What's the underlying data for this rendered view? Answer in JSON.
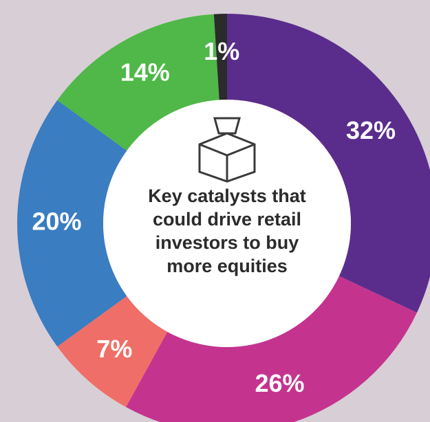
{
  "chart_data": {
    "type": "pie",
    "donut": true,
    "title": "Key catalysts that could drive retail investors to buy more equities",
    "values": [
      32,
      26,
      7,
      20,
      14,
      1
    ],
    "value_labels": [
      "32%",
      "26%",
      "7%",
      "20%",
      "14%",
      "1%"
    ],
    "colors": [
      "#5a2d8c",
      "#c4348f",
      "#ef6f68",
      "#3a7dc1",
      "#4fb848",
      "#2b2b2b"
    ]
  }
}
